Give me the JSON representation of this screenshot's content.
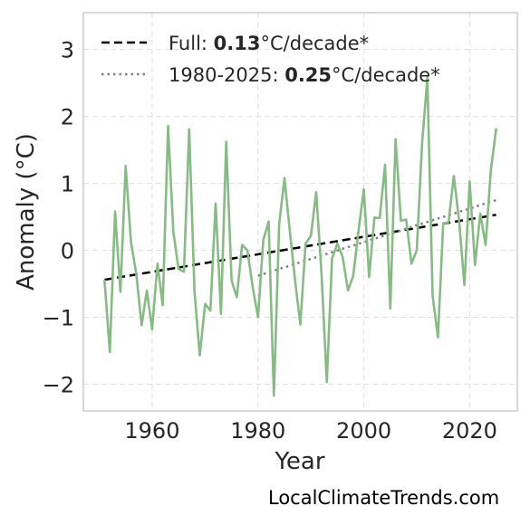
{
  "watermark": "LocalClimateTrends.com",
  "colors": {
    "series": "#86bb84",
    "full_trend": "#000000",
    "recent_trend": "#808080",
    "grid": "#e0e0e0",
    "frame": "#cccccc"
  },
  "chart_data": {
    "type": "line",
    "xlabel": "Year",
    "ylabel": "Anomaly (°C)",
    "xlim": [
      1947,
      2029
    ],
    "ylim": [
      -2.4,
      3.55
    ],
    "xticks": [
      1960,
      1980,
      2000,
      2020
    ],
    "yticks": [
      -2,
      -1,
      0,
      1,
      2,
      3
    ],
    "ytick_labels": [
      "−2",
      "−1",
      "0",
      "1",
      "2",
      "3"
    ],
    "grid": true,
    "legend_position": "top-left",
    "legend": [
      {
        "prefix": "Full: ",
        "value": "0.13",
        "suffix": "°C/decade*",
        "style": "dashed"
      },
      {
        "prefix": "1980-2025: ",
        "value": "0.25",
        "suffix": "°C/decade*",
        "style": "dotted"
      }
    ],
    "series": [
      {
        "x": [
          1951,
          1952,
          1953,
          1954,
          1955,
          1956,
          1957,
          1958,
          1959,
          1960,
          1961,
          1962,
          1963,
          1964,
          1965,
          1966,
          1967,
          1968,
          1969,
          1970,
          1971,
          1972,
          1973,
          1974,
          1975,
          1976,
          1977,
          1978,
          1979,
          1980,
          1981,
          1982,
          1983,
          1984,
          1985,
          1986,
          1987,
          1988,
          1989,
          1990,
          1991,
          1992,
          1993,
          1994,
          1995,
          1996,
          1997,
          1998,
          1999,
          2000,
          2001,
          2002,
          2003,
          2004,
          2005,
          2006,
          2007,
          2008,
          2009,
          2010,
          2011,
          2012,
          2013,
          2014,
          2015,
          2016,
          2017,
          2018,
          2019,
          2020,
          2021,
          2022,
          2023,
          2024,
          2025
        ],
        "values": [
          -0.45,
          -1.52,
          0.58,
          -0.62,
          1.26,
          0.12,
          -0.35,
          -1.12,
          -0.6,
          -1.18,
          -0.2,
          -0.82,
          1.86,
          0.28,
          -0.28,
          -0.32,
          1.81,
          -0.62,
          -1.57,
          -0.8,
          -0.9,
          0.7,
          -0.95,
          1.62,
          -0.45,
          -0.7,
          0.08,
          0.0,
          -0.55,
          -1.0,
          0.15,
          0.43,
          -2.17,
          0.38,
          1.08,
          0.3,
          -0.45,
          -1.11,
          0.1,
          0.22,
          0.87,
          -0.35,
          -1.97,
          -0.12,
          0.1,
          -0.1,
          -0.6,
          -0.38,
          0.3,
          0.91,
          -0.4,
          0.49,
          0.48,
          1.28,
          -0.87,
          1.66,
          0.44,
          0.46,
          -0.2,
          0.0,
          1.6,
          2.58,
          -0.68,
          -1.3,
          0.4,
          0.42,
          1.11,
          0.45,
          -0.52,
          1.03,
          -0.22,
          0.55,
          0.08,
          1.2,
          1.81
        ]
      }
    ],
    "trend_lines": [
      {
        "x": [
          1951,
          2025
        ],
        "values": [
          -0.44,
          0.53
        ],
        "style": "dashed"
      },
      {
        "x": [
          1980,
          2025
        ],
        "values": [
          -0.38,
          0.75
        ],
        "style": "dotted"
      }
    ]
  }
}
